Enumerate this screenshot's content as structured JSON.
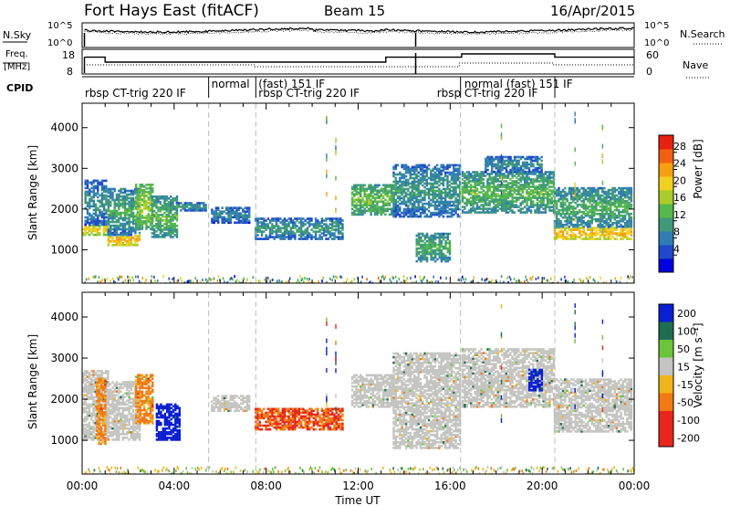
{
  "header": {
    "title": "Fort Hays East (fitACF)",
    "beam": "Beam 15",
    "date": "16/Apr/2015"
  },
  "nsky_panel": {
    "left_label": "N.Sky",
    "right_label": "N.Search",
    "left_ticks": [
      "10^5",
      "10^0"
    ],
    "right_ticks": [
      "10^5",
      "10^0"
    ]
  },
  "freq_panel": {
    "left_label_1": "Freq.",
    "left_label_2": "[MHz]",
    "right_label": "Nave",
    "left_ticks": [
      "18",
      "8"
    ],
    "right_ticks": [
      "60",
      "0"
    ]
  },
  "cpid": {
    "label": "CPID",
    "segments": [
      {
        "text": "rbsp  CT-trig  220  IF",
        "hour": 0.0,
        "row": 1
      },
      {
        "text": "normal",
        "hour": 5.5,
        "row": 0
      },
      {
        "text": "(fast)  151  IF",
        "hour": 7.55,
        "row": 0
      },
      {
        "text": "rbsp  CT-trig  220  IF",
        "hour": 7.55,
        "row": 1
      },
      {
        "text": "rbsp",
        "hour": 15.3,
        "row": 1
      },
      {
        "text": "normal  (fast)  151  IF",
        "hour": 16.5,
        "row": 0
      },
      {
        "text": "CT-trig  220  IF",
        "hour": 16.5,
        "row": 1
      }
    ]
  },
  "power_panel": {
    "ylabel": "Slant Range [km]",
    "cbar_label": "Power [dB]",
    "cbar_ticks": [
      "28",
      "24",
      "20",
      "16",
      "12",
      "8",
      "4"
    ]
  },
  "velocity_panel": {
    "ylabel": "Slant Range [km]",
    "cbar_label": "Velocity [m s⁻¹]",
    "cbar_ticks": [
      "200",
      "100",
      "50",
      "15",
      "-15",
      "-50",
      "-100",
      "-200"
    ]
  },
  "xaxis": {
    "label": "Time UT",
    "ticks": [
      "00:00",
      "04:00",
      "08:00",
      "12:00",
      "16:00",
      "20:00",
      "00:00"
    ]
  },
  "chart_data": [
    {
      "type": "heatmap",
      "title": "",
      "xlabel": "Time UT",
      "ylabel": "Slant Range [km]",
      "x_range_hours": [
        0,
        24
      ],
      "ylim": [
        180,
        4600
      ],
      "yticks": [
        1000,
        2000,
        3000,
        4000
      ],
      "colorbar": {
        "label": "Power [dB]",
        "range": [
          0,
          32
        ],
        "ticks": [
          4,
          8,
          12,
          16,
          20,
          24,
          28
        ]
      },
      "bands": [
        {
          "t0": 0.0,
          "t1": 1.1,
          "r0": 1350,
          "r1": 1600,
          "p": 18
        },
        {
          "t0": 0.1,
          "t1": 1.0,
          "r0": 1600,
          "r1": 2700,
          "p": 7
        },
        {
          "t0": 1.1,
          "t1": 2.5,
          "r0": 1100,
          "r1": 1350,
          "p": 20
        },
        {
          "t0": 1.1,
          "t1": 2.5,
          "r0": 1350,
          "r1": 2500,
          "p": 9
        },
        {
          "t0": 2.3,
          "t1": 3.1,
          "r0": 1500,
          "r1": 2600,
          "p": 14
        },
        {
          "t0": 3.0,
          "t1": 4.1,
          "r0": 1300,
          "r1": 2300,
          "p": 11
        },
        {
          "t0": 3.8,
          "t1": 5.4,
          "r0": 1950,
          "r1": 2150,
          "p": 8
        },
        {
          "t0": 5.6,
          "t1": 7.3,
          "r0": 1650,
          "r1": 2050,
          "p": 6
        },
        {
          "t0": 7.5,
          "t1": 11.3,
          "r0": 1250,
          "r1": 1750,
          "p": 8
        },
        {
          "t0": 11.7,
          "t1": 13.5,
          "r0": 1850,
          "r1": 2600,
          "p": 12
        },
        {
          "t0": 13.5,
          "t1": 16.4,
          "r0": 1800,
          "r1": 3100,
          "p": 8
        },
        {
          "t0": 14.5,
          "t1": 16.0,
          "r0": 700,
          "r1": 1400,
          "p": 10
        },
        {
          "t0": 16.5,
          "t1": 20.5,
          "r0": 1900,
          "r1": 2900,
          "p": 11
        },
        {
          "t0": 17.5,
          "t1": 20.0,
          "r0": 2900,
          "r1": 3300,
          "p": 7
        },
        {
          "t0": 20.5,
          "t1": 23.9,
          "r0": 1250,
          "r1": 1550,
          "p": 20
        },
        {
          "t0": 20.5,
          "t1": 23.9,
          "r0": 1550,
          "r1": 2500,
          "p": 10
        }
      ]
    },
    {
      "type": "heatmap",
      "title": "",
      "xlabel": "Time UT",
      "ylabel": "Slant Range [km]",
      "x_range_hours": [
        0,
        24
      ],
      "ylim": [
        180,
        4600
      ],
      "yticks": [
        1000,
        2000,
        3000,
        4000
      ],
      "colorbar": {
        "label": "Velocity [m s⁻¹]",
        "range": [
          -250,
          250
        ],
        "ticks": [
          200,
          100,
          50,
          15,
          -15,
          -50,
          -100,
          -200
        ]
      },
      "bands": [
        {
          "t0": 0.0,
          "t1": 1.1,
          "r0": 1000,
          "r1": 2700,
          "v": 0
        },
        {
          "t0": 0.6,
          "t1": 1.0,
          "r0": 900,
          "r1": 2500,
          "v": -60
        },
        {
          "t0": 1.1,
          "t1": 2.5,
          "r0": 1000,
          "r1": 2400,
          "v": 0
        },
        {
          "t0": 2.3,
          "t1": 3.1,
          "r0": 1400,
          "r1": 2600,
          "v": -60
        },
        {
          "t0": 3.2,
          "t1": 4.2,
          "r0": 1000,
          "r1": 1900,
          "v": 150
        },
        {
          "t0": 5.6,
          "t1": 7.3,
          "r0": 1700,
          "r1": 2100,
          "v": 0
        },
        {
          "t0": 7.5,
          "t1": 11.3,
          "r0": 1250,
          "r1": 1750,
          "v": -100
        },
        {
          "t0": 11.7,
          "t1": 13.5,
          "r0": 1800,
          "r1": 2600,
          "v": 0
        },
        {
          "t0": 13.5,
          "t1": 16.4,
          "r0": 800,
          "r1": 3100,
          "v": 0
        },
        {
          "t0": 16.5,
          "t1": 20.5,
          "r0": 1800,
          "r1": 3200,
          "v": 0
        },
        {
          "t0": 19.4,
          "t1": 20.0,
          "r0": 2200,
          "r1": 2700,
          "v": 160
        },
        {
          "t0": 20.5,
          "t1": 23.9,
          "r0": 1200,
          "r1": 2500,
          "v": 0
        }
      ]
    }
  ]
}
